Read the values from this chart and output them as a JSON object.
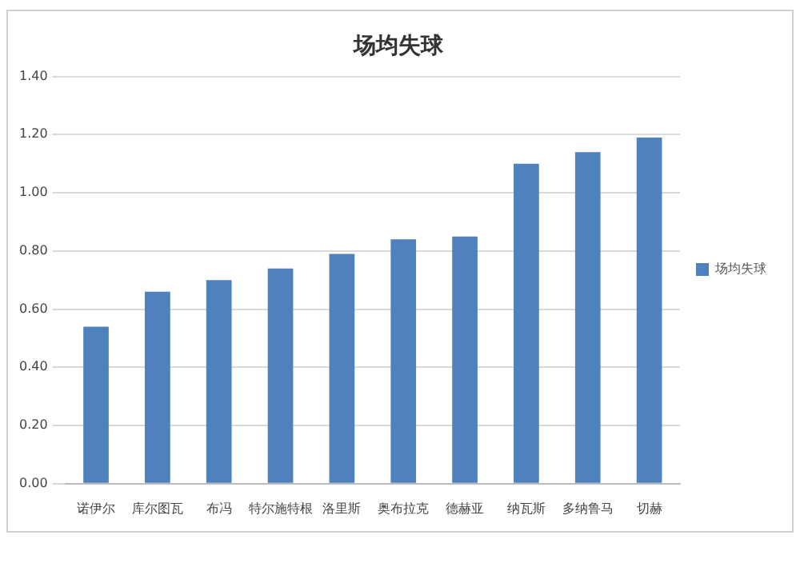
{
  "chart_data": {
    "type": "bar",
    "title": "场均失球",
    "categories": [
      "诺伊尔",
      "库尔图瓦",
      "布冯",
      "特尔施特根",
      "洛里斯",
      "奥布拉克",
      "德赫亚",
      "纳瓦斯",
      "多纳鲁马",
      "切赫"
    ],
    "series": [
      {
        "name": "场均失球",
        "color": "#4f81bd",
        "values": [
          0.54,
          0.66,
          0.7,
          0.74,
          0.79,
          0.84,
          0.85,
          1.1,
          1.14,
          1.19
        ]
      }
    ],
    "ylim": [
      0,
      1.4
    ],
    "yticks": [
      {
        "value": 0,
        "label": "0.00"
      },
      {
        "value": 0.2,
        "label": "0.20"
      },
      {
        "value": 0.4,
        "label": "0.40"
      },
      {
        "value": 0.6,
        "label": "0.60"
      },
      {
        "value": 0.8,
        "label": "0.80"
      },
      {
        "value": 1.0,
        "label": "1.00"
      },
      {
        "value": 1.2,
        "label": "1.20"
      },
      {
        "value": 1.4,
        "label": "1.40"
      }
    ],
    "grid": "y",
    "legend": "right"
  }
}
